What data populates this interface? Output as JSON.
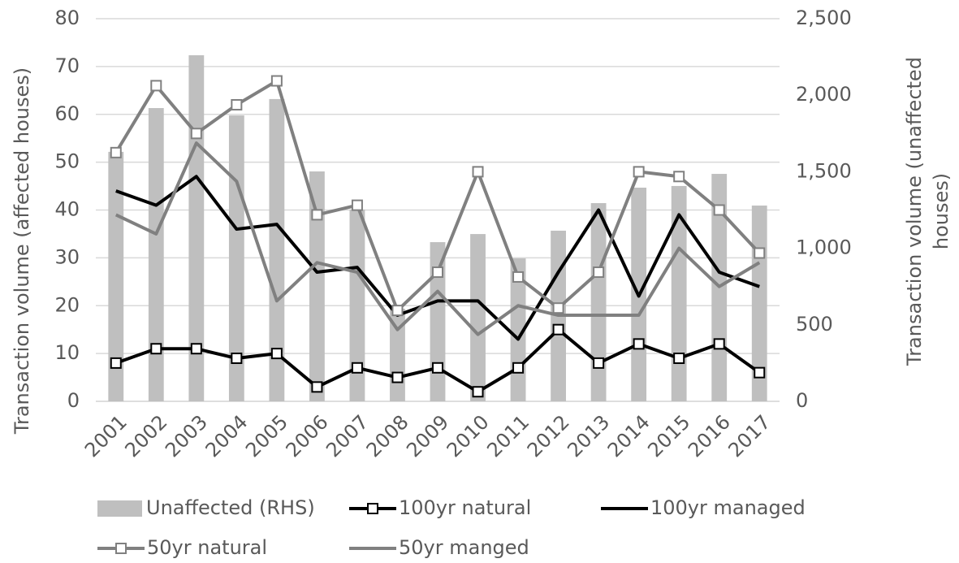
{
  "chart_data": {
    "type": "combo",
    "ylabel": "Transaction volume (affected houses)",
    "y2label": [
      "Transaction volume (unaffected",
      "houses)"
    ],
    "categories": [
      "2001",
      "2002",
      "2003",
      "2004",
      "2005",
      "2006",
      "2007",
      "2008",
      "2009",
      "2010",
      "2011",
      "2012",
      "2013",
      "2014",
      "2015",
      "2016",
      "2017"
    ],
    "ylim": [
      0,
      80
    ],
    "yticks": [
      0,
      10,
      20,
      30,
      40,
      50,
      60,
      70,
      80
    ],
    "y2lim": [
      0,
      2500
    ],
    "y2ticks": [
      0,
      500,
      {
        "value": 1000,
        "label": "1,000"
      },
      {
        "value": 1500,
        "label": "1,500"
      },
      {
        "value": 2000,
        "label": "2,000"
      },
      {
        "value": 2500,
        "label": "2,500"
      }
    ],
    "grid": true,
    "legend": "bottom",
    "series": [
      {
        "name": "Unaffected (RHS)",
        "type": "bar",
        "axis": "y2",
        "color": "#bfbfbf",
        "values": [
          1630,
          1916,
          2261,
          1868,
          1975,
          1502,
          1253,
          605,
          1040,
          1093,
          934,
          1115,
          1295,
          1396,
          1407,
          1486,
          1279
        ]
      },
      {
        "name": "100yr natural",
        "type": "line",
        "marker": "square",
        "color": "#000000",
        "values": [
          8,
          11,
          11,
          9,
          10,
          3,
          7,
          5,
          7,
          2,
          7,
          15,
          8,
          12,
          9,
          12,
          6
        ]
      },
      {
        "name": "100yr managed",
        "type": "line",
        "color": "#000000",
        "values": [
          44,
          41,
          47,
          36,
          37,
          27,
          28,
          18,
          21,
          21,
          13,
          27,
          40,
          22,
          39,
          27,
          24
        ]
      },
      {
        "name": "50yr natural",
        "type": "line",
        "marker": "square",
        "color": "#808080",
        "values": [
          52,
          66,
          56,
          62,
          67,
          39,
          41,
          19,
          27,
          48,
          26,
          19.5,
          27,
          48,
          47,
          40,
          31
        ]
      },
      {
        "name": "50yr manged",
        "type": "line",
        "color": "#808080",
        "values": [
          39,
          35,
          54,
          46,
          21,
          29,
          27,
          15,
          23,
          14,
          20,
          18,
          18,
          18,
          32,
          24,
          29
        ]
      }
    ]
  }
}
